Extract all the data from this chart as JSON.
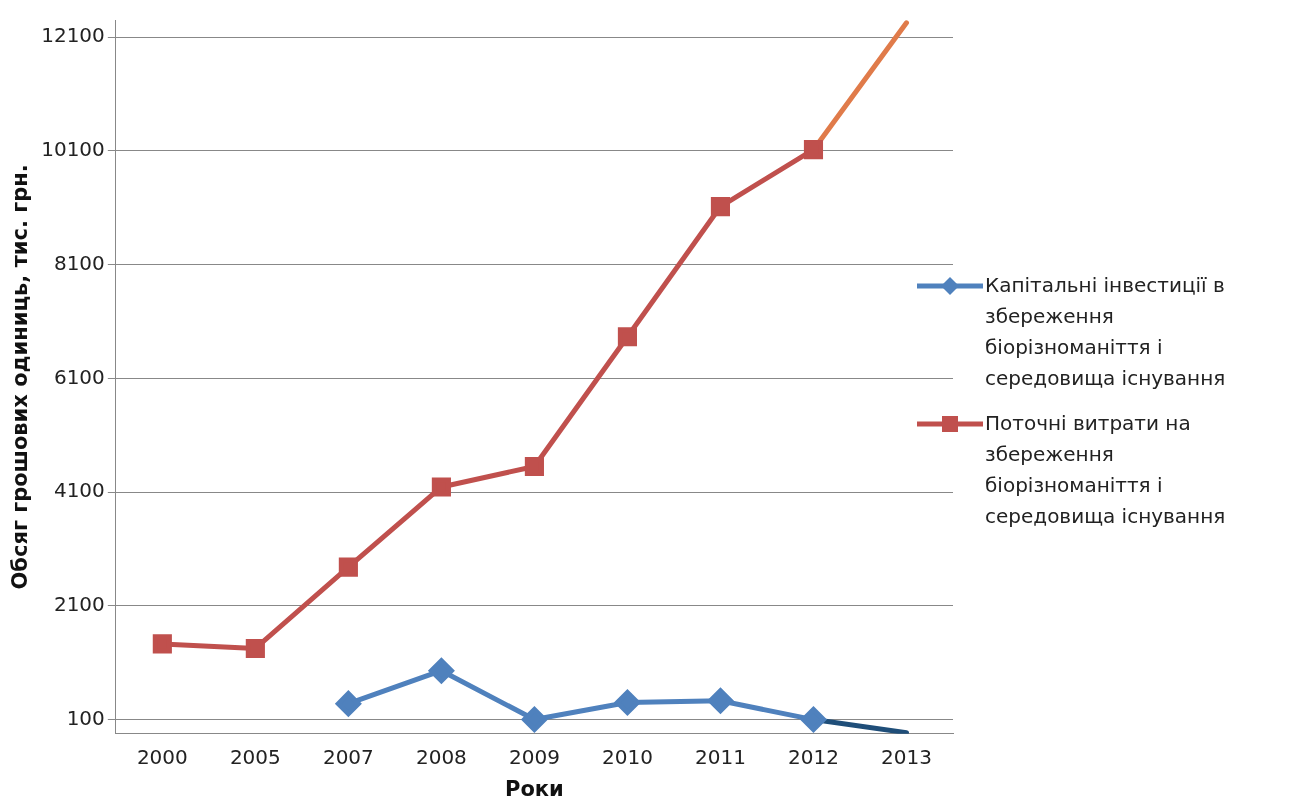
{
  "chart_data": {
    "type": "line",
    "xlabel": "Роки",
    "ylabel": "Обсяг грошових одиниць, тис. грн.",
    "categories": [
      "2000",
      "2005",
      "2007",
      "2008",
      "2009",
      "2010",
      "2011",
      "2012",
      "2013"
    ],
    "series": [
      {
        "name": "Капітальні інвестиції в збереження біорізноманіття і середовища існування",
        "color": "#4f81bd",
        "marker": "diamond",
        "values": [
          null,
          null,
          380,
          960,
          100,
          400,
          430,
          100,
          null
        ]
      },
      {
        "name": "Поточні витрати на збереження біорізноманіття і середовища існування",
        "color": "#c0504d",
        "marker": "square",
        "values": [
          1430,
          1350,
          2780,
          4190,
          4550,
          6830,
          9120,
          10120,
          null
        ]
      },
      {
        "color": "#e07b4a",
        "marker": "none",
        "values": [
          null,
          null,
          null,
          null,
          null,
          null,
          null,
          10120,
          12350
        ]
      },
      {
        "color": "#1f4e79",
        "marker": "none",
        "values": [
          null,
          null,
          null,
          null,
          null,
          null,
          null,
          100,
          -130
        ]
      }
    ],
    "ylim": [
      -150,
      12400
    ],
    "yticks": [
      100,
      2100,
      4100,
      6100,
      8100,
      10100,
      12100
    ],
    "grid": "y",
    "legend": "right",
    "line_style": "solid"
  }
}
